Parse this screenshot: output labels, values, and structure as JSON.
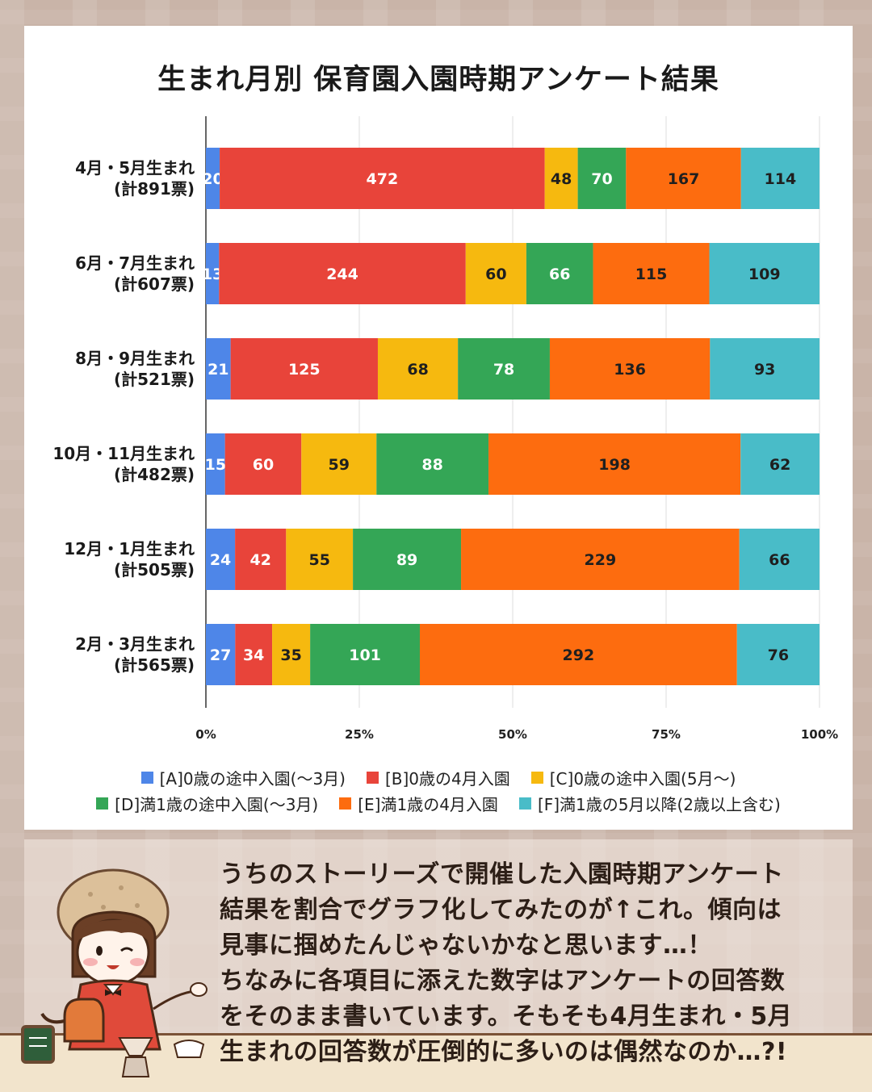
{
  "colors": {
    "A": "#4e86e8",
    "B": "#e8443a",
    "C": "#f6b90f",
    "D": "#34a656",
    "E": "#fd6c0f",
    "F": "#49bcc8"
  },
  "chart_data": {
    "type": "bar",
    "orientation": "horizontal",
    "stacked": "percent",
    "title": "生まれ月別 保育園入園時期アンケート結果",
    "categories": [
      [
        "4月・5月生まれ",
        "(計891票)"
      ],
      [
        "6月・7月生まれ",
        "(計607票)"
      ],
      [
        "8月・9月生まれ",
        "(計521票)"
      ],
      [
        "10月・11月生まれ",
        "(計482票)"
      ],
      [
        "12月・1月生まれ",
        "(計505票)"
      ],
      [
        "2月・3月生まれ",
        "(計565票)"
      ]
    ],
    "series": [
      {
        "key": "A",
        "name": "[A]0歳の途中入園(〜3月)",
        "values": [
          20,
          13,
          21,
          15,
          24,
          27
        ]
      },
      {
        "key": "B",
        "name": "[B]0歳の4月入園",
        "values": [
          472,
          244,
          125,
          60,
          42,
          34
        ]
      },
      {
        "key": "C",
        "name": "[C]0歳の途中入園(5月〜)",
        "values": [
          48,
          60,
          68,
          59,
          55,
          35
        ]
      },
      {
        "key": "D",
        "name": "[D]満1歳の途中入園(〜3月)",
        "values": [
          70,
          66,
          78,
          88,
          89,
          101
        ]
      },
      {
        "key": "E",
        "name": "[E]満1歳の4月入園",
        "values": [
          167,
          115,
          136,
          198,
          229,
          292
        ]
      },
      {
        "key": "F",
        "name": "[F]満1歳の5月以降(2歳以上含む)",
        "values": [
          114,
          109,
          93,
          62,
          66,
          76
        ]
      }
    ],
    "xticks": [
      "0%",
      "25%",
      "50%",
      "75%",
      "100%"
    ],
    "xlim": [
      0,
      100
    ],
    "grid": true,
    "legend_position": "bottom"
  },
  "legend_rows": [
    [
      "A",
      "B",
      "C"
    ],
    [
      "D",
      "E",
      "F"
    ]
  ],
  "comment": {
    "lines": [
      "うちのストーリーズで開催した入園時期アンケート",
      "結果を割合でグラフ化してみたのが↑これ。傾向は",
      "見事に掴めたんじゃないかなと思います…！",
      "ちなみに各項目に添えた数字はアンケートの回答数",
      "をそのまま書いています。そもそも4月生まれ・5月",
      "生まれの回答数が圧倒的に多いのは偶然なのか…?!"
    ]
  }
}
